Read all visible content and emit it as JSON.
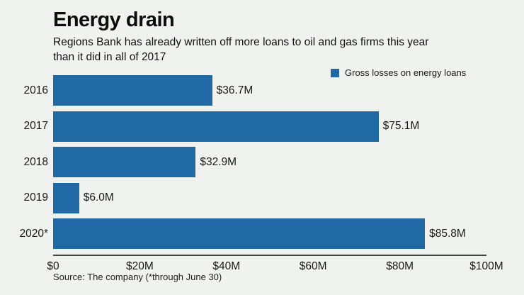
{
  "header": {
    "title": "Energy drain",
    "subtitle_line1": "Regions Bank has already written off more loans to oil and gas firms this year",
    "subtitle_line2": "than it did in all of 2017"
  },
  "legend": {
    "label": "Gross losses on energy loans"
  },
  "chart_data": {
    "type": "bar",
    "orientation": "horizontal",
    "title": "Energy drain",
    "subtitle": "Regions Bank has already written off more loans to oil and gas firms this year than it did in all of 2017",
    "categories": [
      "2016",
      "2017",
      "2018",
      "2019",
      "2020*"
    ],
    "values": [
      36.7,
      75.1,
      32.9,
      6.0,
      85.8
    ],
    "value_labels": [
      "$36.7M",
      "$75.1M",
      "$32.9M",
      "$6.0M",
      "$85.8M"
    ],
    "series_name": "Gross losses on energy loans",
    "x_ticks": [
      "$0",
      "$20M",
      "$40M",
      "$60M",
      "$80M",
      "$100M"
    ],
    "xlim": [
      0,
      100
    ],
    "xlabel": "",
    "ylabel": "",
    "grid": false,
    "legend_position": "top-right",
    "bar_color": "#2069a5"
  },
  "footer": {
    "source": "Source: The company (*through June 30)"
  },
  "colors": {
    "background": "#f0f2f0",
    "bar": "#2069a5",
    "text": "#1a1a1a",
    "axis": "#454545"
  }
}
